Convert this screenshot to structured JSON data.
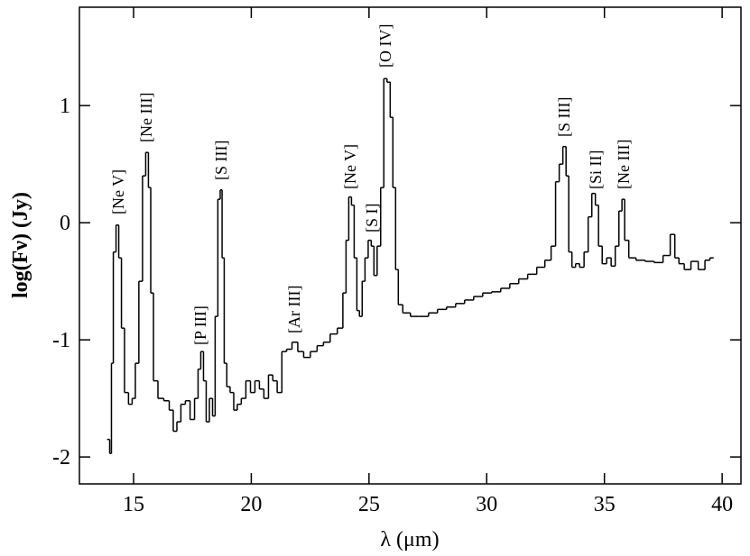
{
  "chart_data": {
    "type": "line",
    "step": true,
    "x_label": "λ (μm)",
    "y_label": "log(Fν) (Jy)",
    "xlim": [
      12.7,
      40.8
    ],
    "ylim": [
      -2.23,
      1.84
    ],
    "xticks": [
      15,
      20,
      25,
      30,
      35,
      40
    ],
    "yticks": [
      -2,
      -1,
      0,
      1
    ],
    "color": "#000000",
    "annotations": [
      "[Ne V]",
      "[Ne III]",
      "[P III]",
      "[S III]",
      "[Ar III]",
      "[Ne V]",
      "[S I]",
      "[O IV]",
      "[S III]",
      "[Si II]",
      "[Ne III]"
    ],
    "series": [
      {
        "name": "spectrum",
        "color": "#000000",
        "x": [
          13.93,
          14.04,
          14.08,
          14.2,
          14.31,
          14.43,
          14.54,
          14.69,
          14.88,
          15.0,
          15.15,
          15.3,
          15.46,
          15.57,
          15.69,
          15.77,
          15.92,
          16.15,
          16.42,
          16.61,
          16.76,
          16.92,
          17.1,
          17.3,
          17.5,
          17.68,
          17.8,
          17.91,
          18.03,
          18.14,
          18.3,
          18.41,
          18.52,
          18.64,
          18.72,
          18.8,
          18.9,
          19.02,
          19.18,
          19.33,
          19.48,
          19.67,
          19.87,
          20.06,
          20.25,
          20.44,
          20.63,
          20.83,
          21.0,
          21.2,
          21.4,
          21.6,
          21.86,
          22.09,
          22.36,
          22.66,
          22.93,
          23.2,
          23.5,
          23.81,
          23.97,
          24.08,
          24.2,
          24.31,
          24.43,
          24.54,
          24.65,
          24.77,
          24.89,
          25.04,
          25.15,
          25.27,
          25.42,
          25.57,
          25.69,
          25.84,
          25.96,
          26.07,
          26.19,
          26.3,
          26.57,
          26.95,
          27.34,
          27.72,
          28.1,
          28.49,
          28.87,
          29.25,
          29.64,
          30.02,
          30.4,
          30.79,
          31.17,
          31.55,
          31.93,
          32.32,
          32.62,
          32.85,
          33.0,
          33.16,
          33.31,
          33.43,
          33.54,
          33.7,
          33.85,
          34.04,
          34.23,
          34.39,
          34.54,
          34.69,
          34.81,
          35.0,
          35.19,
          35.38,
          35.54,
          35.69,
          35.8,
          35.92,
          36.15,
          36.53,
          36.92,
          37.3,
          37.68,
          37.91,
          38.07,
          38.26,
          38.52,
          38.83,
          39.14,
          39.4,
          39.56
        ],
        "values": [
          -1.85,
          -1.97,
          -1.2,
          -0.25,
          -0.02,
          -0.3,
          -0.9,
          -1.45,
          -1.55,
          -1.5,
          -1.2,
          -0.5,
          0.4,
          0.6,
          0.3,
          -0.6,
          -1.35,
          -1.5,
          -1.52,
          -1.6,
          -1.78,
          -1.7,
          -1.55,
          -1.52,
          -1.68,
          -1.5,
          -1.25,
          -1.1,
          -1.35,
          -1.7,
          -1.5,
          -1.65,
          -0.8,
          0.2,
          0.28,
          -0.3,
          -1.2,
          -1.4,
          -1.45,
          -1.6,
          -1.55,
          -1.5,
          -1.35,
          -1.45,
          -1.35,
          -1.42,
          -1.5,
          -1.3,
          -1.35,
          -1.45,
          -1.1,
          -1.08,
          -1.02,
          -1.1,
          -1.15,
          -1.1,
          -1.05,
          -1.02,
          -0.95,
          -0.9,
          -0.6,
          -0.15,
          0.22,
          0.15,
          -0.3,
          -0.75,
          -0.8,
          -0.5,
          -0.3,
          -0.15,
          -0.2,
          -0.45,
          -0.2,
          0.3,
          1.23,
          1.2,
          0.9,
          0.3,
          -0.4,
          -0.7,
          -0.77,
          -0.8,
          -0.8,
          -0.77,
          -0.74,
          -0.72,
          -0.69,
          -0.66,
          -0.63,
          -0.6,
          -0.59,
          -0.56,
          -0.52,
          -0.48,
          -0.44,
          -0.38,
          -0.32,
          -0.2,
          0.35,
          0.5,
          0.65,
          0.4,
          -0.25,
          -0.38,
          -0.35,
          -0.38,
          -0.25,
          0.05,
          0.25,
          0.15,
          -0.2,
          -0.35,
          -0.3,
          -0.37,
          -0.2,
          0.1,
          0.2,
          -0.15,
          -0.3,
          -0.32,
          -0.33,
          -0.34,
          -0.28,
          -0.1,
          -0.3,
          -0.35,
          -0.4,
          -0.33,
          -0.4,
          -0.32,
          -0.3
        ]
      }
    ]
  }
}
